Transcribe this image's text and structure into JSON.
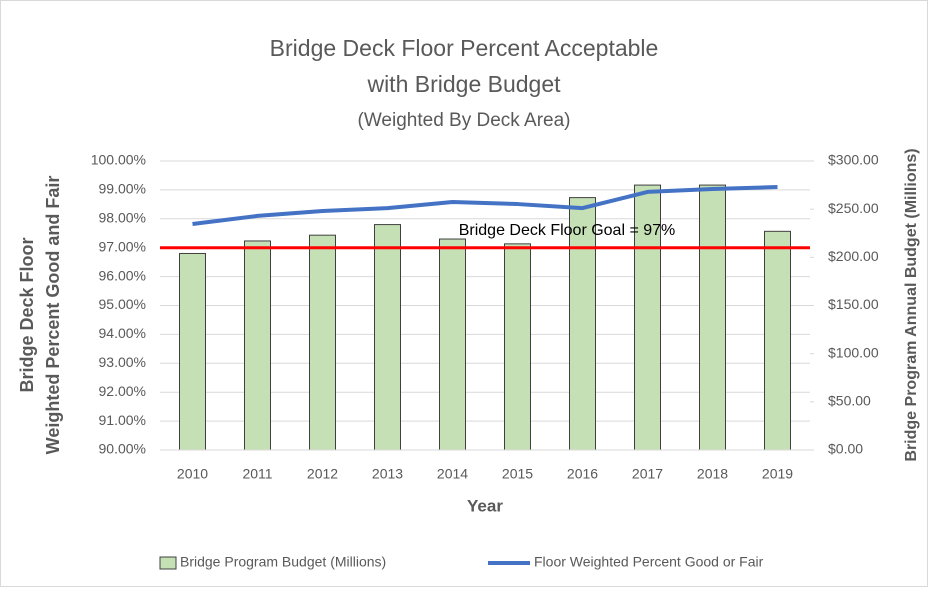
{
  "chart_data": {
    "type": "combo",
    "title": [
      "Bridge Deck Floor Percent Acceptable",
      "with Bridge Budget"
    ],
    "subtitle": "(Weighted By Deck Area)",
    "xlabel": "Year",
    "ylabel": [
      "Bridge Deck Floor",
      "Weighted Percent Good and Fair"
    ],
    "y2label": "Bridge Program Annual Budget (Millions)",
    "categories": [
      "2010",
      "2011",
      "2012",
      "2013",
      "2014",
      "2015",
      "2016",
      "2017",
      "2018",
      "2019"
    ],
    "series": [
      {
        "name": "Bridge Program Budget (Millions)",
        "type": "bar",
        "axis": "y2",
        "color": "#c5e0b4",
        "values": [
          204,
          217,
          223,
          234,
          219,
          214,
          262,
          275,
          275,
          227
        ]
      },
      {
        "name": "Floor  Weighted Percent Good or Fair",
        "type": "line",
        "axis": "y",
        "color": "#4472c4",
        "values": [
          97.82,
          98.1,
          98.27,
          98.37,
          98.58,
          98.51,
          98.37,
          98.93,
          99.03,
          99.1
        ]
      }
    ],
    "reference_line": {
      "value": 97,
      "label": "Bridge Deck Floor Goal = 97%",
      "color": "#ff0000"
    },
    "ylim": [
      90,
      100
    ],
    "yticks": [
      {
        "value": 90,
        "label": "90.00%"
      },
      {
        "value": 91,
        "label": "91.00%"
      },
      {
        "value": 92,
        "label": "92.00%"
      },
      {
        "value": 93,
        "label": "93.00%"
      },
      {
        "value": 94,
        "label": "94.00%"
      },
      {
        "value": 95,
        "label": "95.00%"
      },
      {
        "value": 96,
        "label": "96.00%"
      },
      {
        "value": 97,
        "label": "97.00%"
      },
      {
        "value": 98,
        "label": "98.00%"
      },
      {
        "value": 99,
        "label": "99.00%"
      },
      {
        "value": 100,
        "label": "100.00%"
      }
    ],
    "y2lim": [
      0,
      300
    ],
    "y2ticks": [
      {
        "value": 0,
        "label": "$0.00"
      },
      {
        "value": 50,
        "label": "$50.00"
      },
      {
        "value": 100,
        "label": "$100.00"
      },
      {
        "value": 150,
        "label": "$150.00"
      },
      {
        "value": 200,
        "label": "$200.00"
      },
      {
        "value": 250,
        "label": "$250.00"
      },
      {
        "value": 300,
        "label": "$300.00"
      }
    ],
    "grid": true,
    "legend": "bottom"
  }
}
